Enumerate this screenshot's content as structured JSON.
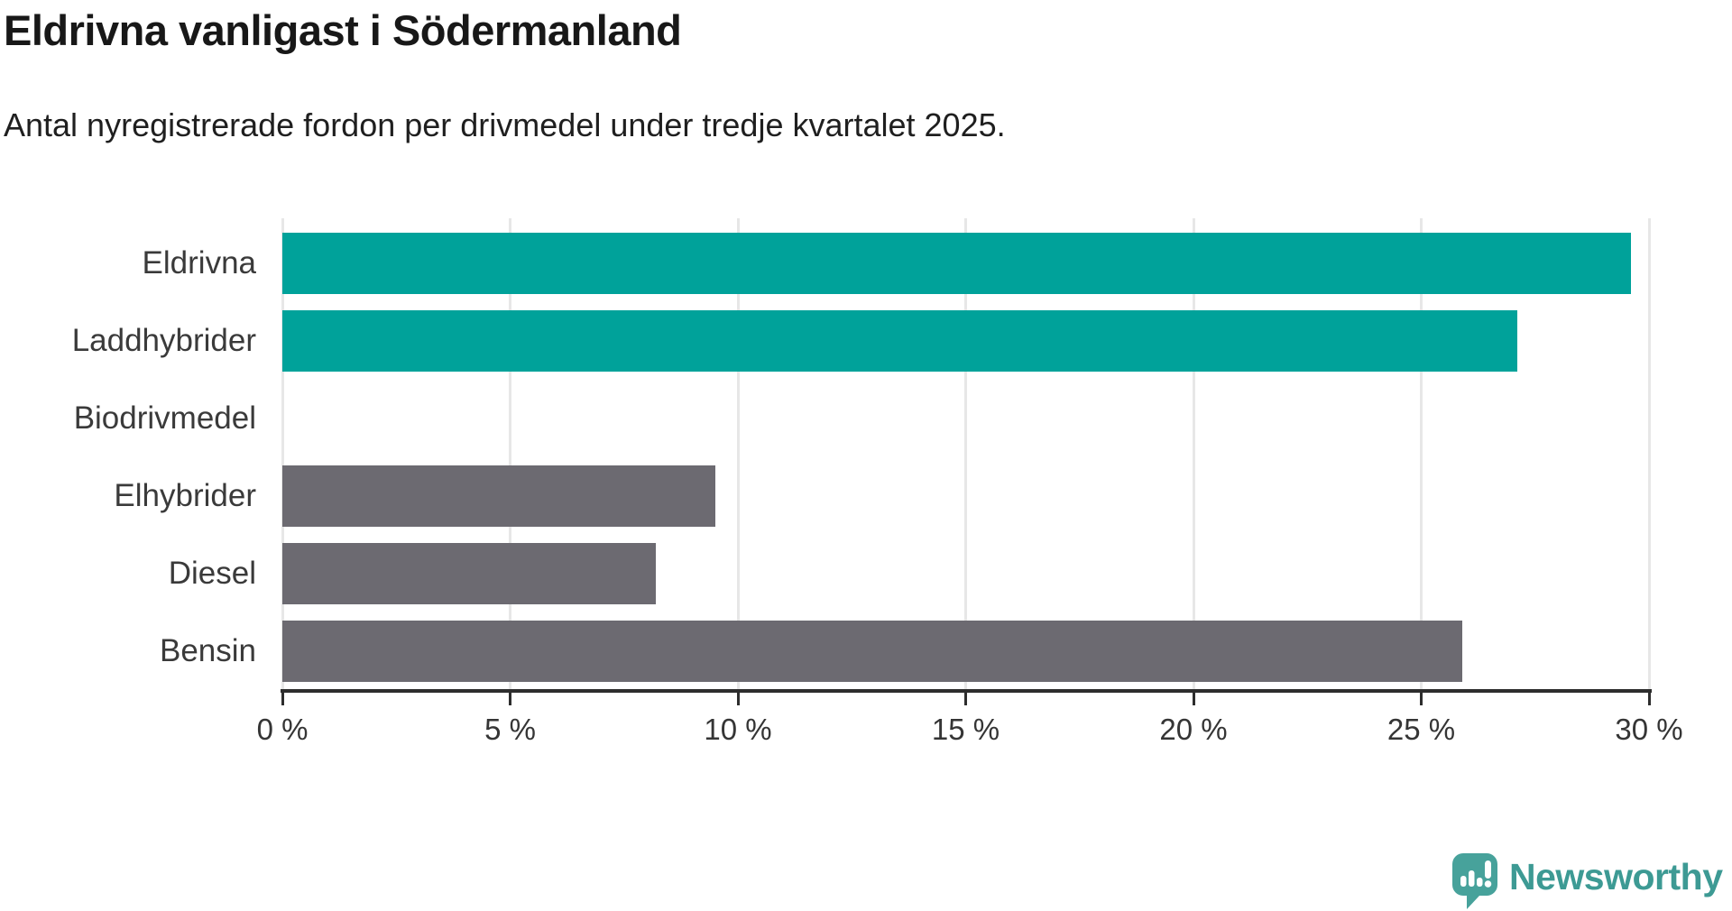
{
  "header": {
    "title": "Eldrivna vanligast i Södermanland",
    "subtitle": "Antal nyregistrerade fordon per drivmedel under tredje kvartalet 2025."
  },
  "branding": {
    "name": "Newsworthy",
    "logo_icon": "speech-bubble-bar-chart-icon",
    "text_color": "#3d9a94",
    "icon_color": "#47a29b"
  },
  "colors": {
    "accent_teal": "#00a29a",
    "muted_gray": "#6c6a71",
    "gridline": "#e7e7e7",
    "axis": "#2d2d2d",
    "label_text": "#3a3a3a"
  },
  "chart_data": {
    "type": "bar",
    "orientation": "horizontal",
    "title": "Eldrivna vanligast i Södermanland",
    "subtitle": "Antal nyregistrerade fordon per drivmedel under tredje kvartalet 2025.",
    "categories": [
      "Eldrivna",
      "Laddhybrider",
      "Biodrivmedel",
      "Elhybrider",
      "Diesel",
      "Bensin"
    ],
    "values": [
      29.6,
      27.1,
      0,
      9.5,
      8.2,
      25.9
    ],
    "unit": "%",
    "bar_colors": [
      "#00a29a",
      "#00a29a",
      "#6c6a71",
      "#6c6a71",
      "#6c6a71",
      "#6c6a71"
    ],
    "xlim": [
      0,
      30
    ],
    "grid": "vertical",
    "legend": "none",
    "x_ticks": {
      "values": [
        0,
        5,
        10,
        15,
        20,
        25,
        30
      ],
      "labels": [
        "0 %",
        "5 %",
        "10 %",
        "15 %",
        "20 %",
        "25 %",
        "30 %"
      ]
    }
  }
}
